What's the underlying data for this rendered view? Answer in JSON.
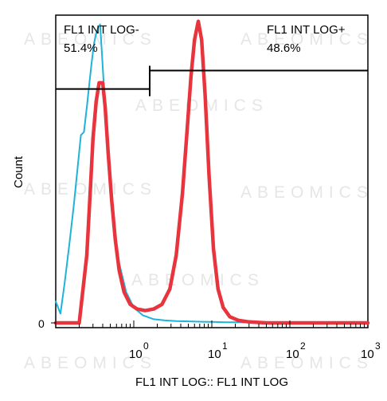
{
  "watermark": "ABEOMICS",
  "chart_data": {
    "type": "histogram",
    "xlabel": "FL1 INT LOG:: FL1 INT LOG",
    "ylabel": "Count",
    "x_scale": "log",
    "xlim": [
      0.1,
      1000
    ],
    "ylim": [
      0,
      100
    ],
    "x_ticks": [
      {
        "base": "10",
        "exp": "0",
        "value": 1
      },
      {
        "base": "10",
        "exp": "1",
        "value": 10
      },
      {
        "base": "10",
        "exp": "2",
        "value": 100
      },
      {
        "base": "10",
        "exp": "3",
        "value": 1000
      }
    ],
    "y_ticks": [
      {
        "label": "0",
        "value": 0
      }
    ],
    "gates": [
      {
        "name": "FL1 INT LOG-",
        "percent": "51.4%",
        "x_range": [
          0.1,
          1.6
        ],
        "level": 76
      },
      {
        "name": "FL1 INT LOG+",
        "percent": "48.6%",
        "x_range": [
          1.6,
          1000
        ],
        "level": 82
      }
    ],
    "series": [
      {
        "color": "#1fb3d9",
        "x": [
          0.1,
          0.115,
          0.13,
          0.15,
          0.17,
          0.19,
          0.21,
          0.23,
          0.25,
          0.27,
          0.29,
          0.31,
          0.33,
          0.35,
          0.37,
          0.39,
          0.42,
          0.45,
          0.5,
          0.6,
          0.8,
          1.0,
          1.3,
          1.8,
          2.5,
          3.5,
          5,
          7,
          10,
          15,
          20,
          40,
          100,
          1000
        ],
        "y": [
          7,
          3,
          13,
          26,
          38,
          50,
          61,
          62,
          70,
          78,
          85,
          91,
          94,
          96,
          97,
          88,
          74,
          61,
          43,
          23,
          10,
          5,
          2.5,
          1.2,
          0.8,
          0.6,
          0.5,
          0.4,
          0.3,
          0.2,
          0.2,
          0.1,
          0,
          0
        ]
      },
      {
        "color": "#e8343c",
        "x": [
          0.1,
          0.2,
          0.25,
          0.28,
          0.3,
          0.33,
          0.36,
          0.4,
          0.43,
          0.47,
          0.52,
          0.58,
          0.65,
          0.75,
          0.9,
          1.1,
          1.4,
          1.8,
          2.3,
          2.9,
          3.5,
          4.2,
          4.8,
          5.4,
          6,
          6.7,
          7.4,
          8.2,
          9.2,
          10.5,
          12,
          14,
          17,
          22,
          30,
          50,
          100,
          1000
        ],
        "y": [
          0,
          0,
          22,
          45,
          60,
          72,
          78,
          78,
          70,
          55,
          40,
          27,
          17,
          10,
          6,
          4.5,
          4,
          4.5,
          6,
          11,
          22,
          42,
          62,
          80,
          92,
          98,
          92,
          74,
          48,
          24,
          11,
          5,
          2,
          0.8,
          0.3,
          0,
          0,
          0
        ]
      }
    ]
  }
}
